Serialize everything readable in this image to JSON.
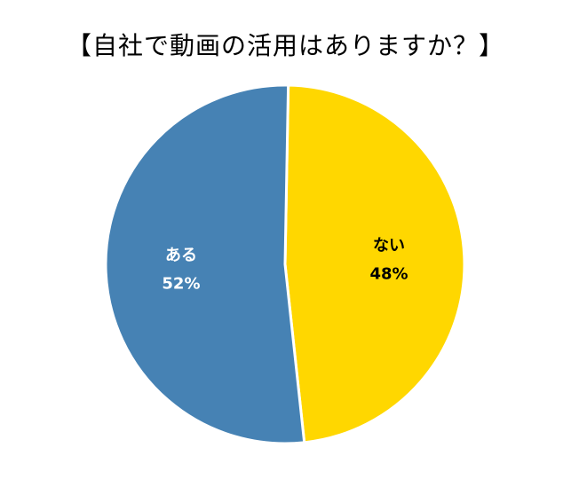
{
  "chart_data": {
    "type": "pie",
    "title": "【自社で動画の活用はありますか？】",
    "slices": [
      {
        "label": "ない",
        "value": 48,
        "value_label": "48%",
        "color": "#FFD700",
        "text_color": "#000000"
      },
      {
        "label": "ある",
        "value": 52,
        "value_label": "52%",
        "color": "#4682B4",
        "text_color": "#FFFFFF"
      }
    ],
    "start_angle": "12 o'clock",
    "direction": "clockwise",
    "legend": "none"
  }
}
